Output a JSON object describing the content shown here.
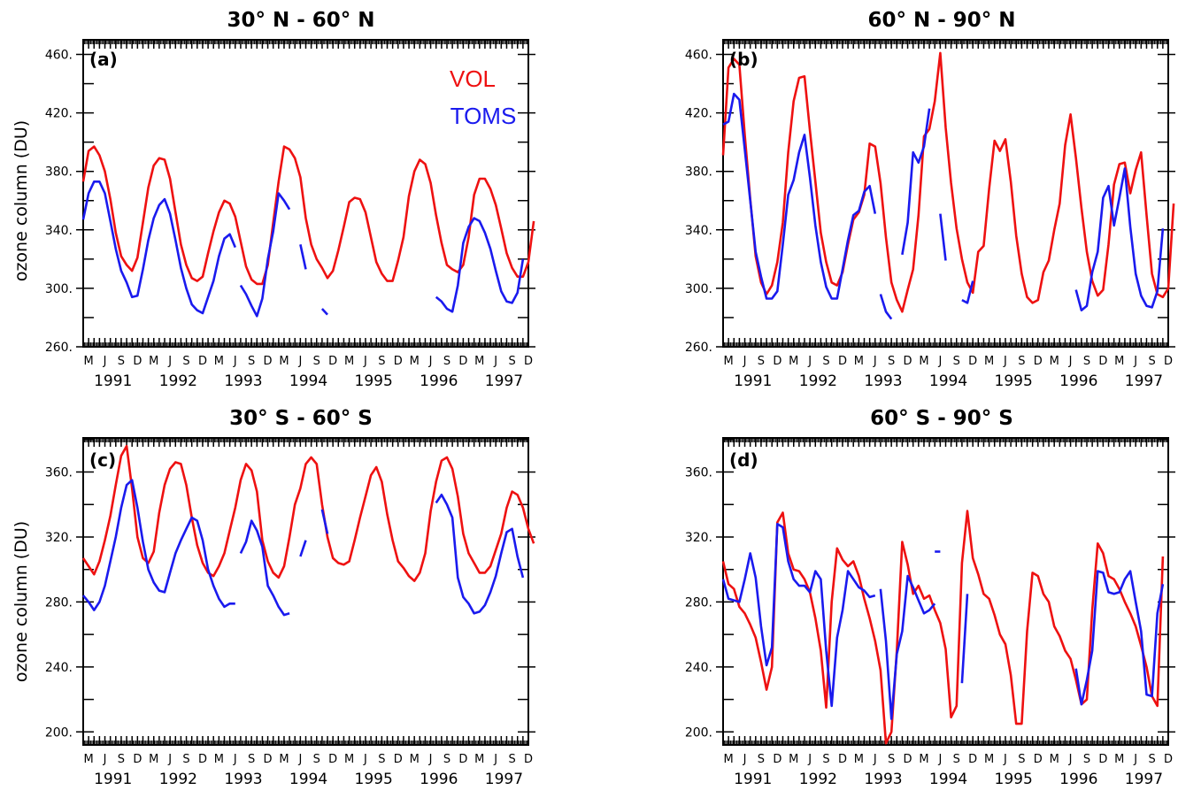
{
  "figure": {
    "month_letters": [
      "M",
      "J",
      "S",
      "D"
    ],
    "years": [
      "1991",
      "1992",
      "1993",
      "1994",
      "1995",
      "1996",
      "1997"
    ],
    "colors": {
      "VOL": "#ee1111",
      "TOMS": "#1a1aee"
    }
  },
  "chart_data": [
    {
      "type": "line",
      "panel_label": "(a)",
      "title": "30° N - 60° N",
      "ylabel": "ozone column (DU)",
      "ylim": [
        260,
        470
      ],
      "yticks": [
        260,
        300,
        340,
        380,
        420,
        460
      ],
      "ytick_labels": [
        "260.",
        "300.",
        "340.",
        "380.",
        "420.",
        "460."
      ],
      "xlim": [
        "1991-02",
        "1997-12"
      ],
      "legend_position": "top-right",
      "series": [
        {
          "name": "VOL",
          "segments": [
            {
              "start": "1991-02",
              "values": [
                373,
                394,
                397,
                391,
                380,
                361,
                338,
                322,
                316,
                312,
                321,
                345,
                369,
                384,
                389,
                388,
                375,
                352,
                330,
                316,
                307,
                305,
                308,
                324,
                339,
                352,
                360,
                358,
                349,
                332,
                315,
                306,
                303,
                303,
                316,
                345,
                373,
                397,
                395,
                389,
                376,
                348,
                330,
                320,
                314,
                307,
                312,
                326,
                342,
                359,
                362,
                361,
                352,
                335,
                318,
                310,
                305,
                305,
                319,
                335,
                363,
                380,
                388,
                385,
                372,
                350,
                331,
                316,
                313,
                311,
                316,
                335,
                364,
                375,
                375,
                368,
                357,
                341,
                324,
                314,
                308,
                308,
                318,
                346
              ]
            }
          ]
        },
        {
          "name": "TOMS",
          "segments": [
            {
              "start": "1991-02",
              "values": [
                347,
                365,
                373,
                373,
                365,
                346,
                327,
                312,
                304,
                294,
                295,
                313,
                333,
                348,
                357,
                361,
                351,
                333,
                314,
                300,
                289,
                285,
                283,
                294,
                305,
                322,
                334,
                337,
                328
              ]
            },
            {
              "start": "1993-07",
              "values": [
                302,
                296,
                288,
                281,
                293,
                320,
                339,
                365,
                360,
                354
              ]
            },
            {
              "start": "1994-06",
              "values": [
                330,
                313
              ]
            },
            {
              "start": "1994-10",
              "values": [
                286,
                282
              ]
            },
            {
              "start": "1996-07",
              "values": [
                294,
                291,
                286,
                284,
                302,
                331,
                342,
                348,
                346,
                338,
                327,
                312,
                298,
                291,
                290,
                297,
                320
              ]
            }
          ]
        }
      ]
    },
    {
      "type": "line",
      "panel_label": "(b)",
      "title": "60° N - 90° N",
      "ylim": [
        260,
        470
      ],
      "yticks": [
        260,
        300,
        340,
        380,
        420,
        460
      ],
      "ytick_labels": [
        "260.",
        "300.",
        "340.",
        "380.",
        "420.",
        "460."
      ],
      "xlim": [
        "1991-02",
        "1997-12"
      ],
      "series": [
        {
          "name": "VOL",
          "segments": [
            {
              "start": "1991-02",
              "values": [
                391,
                451,
                457,
                453,
                405,
                361,
                322,
                304,
                296,
                302,
                318,
                345,
                393,
                428,
                444,
                445,
                408,
                373,
                338,
                318,
                304,
                302,
                311,
                330,
                347,
                352,
                364,
                399,
                397,
                372,
                335,
                304,
                292,
                284,
                299,
                313,
                350,
                404,
                409,
                428,
                461,
                410,
                372,
                341,
                320,
                304,
                297,
                325,
                329,
                368,
                401,
                394,
                402,
                373,
                336,
                310,
                294,
                290,
                292,
                311,
                319,
                340,
                358,
                398,
                419,
                389,
                355,
                325,
                305,
                295,
                299,
                330,
                371,
                385,
                386,
                365,
                381,
                393,
                350,
                310,
                296,
                294,
                300,
                358
              ]
            }
          ]
        },
        {
          "name": "TOMS",
          "segments": [
            {
              "start": "1991-02",
              "values": [
                412,
                414,
                433,
                429,
                395,
                360,
                325,
                308,
                293,
                293,
                298,
                330,
                364,
                374,
                393,
                405,
                376,
                343,
                318,
                301,
                293,
                293,
                313,
                333,
                350,
                353,
                366,
                370,
                351
              ]
            },
            {
              "start": "1993-07",
              "values": [
                296,
                284,
                279
              ]
            },
            {
              "start": "1993-11",
              "values": [
                323,
                345,
                393,
                386,
                397,
                423
              ]
            },
            {
              "start": "1994-06",
              "values": [
                351,
                319
              ]
            },
            {
              "start": "1994-10",
              "values": [
                292,
                290,
                305
              ]
            },
            {
              "start": "1996-07",
              "values": [
                299,
                285,
                288,
                311,
                325,
                362,
                370,
                343,
                362,
                382,
                342,
                310,
                295,
                288,
                287,
                298,
                341
              ]
            }
          ]
        }
      ]
    },
    {
      "type": "line",
      "panel_label": "(c)",
      "title": "30° S - 60° S",
      "ylabel": "ozone column (DU)",
      "ylim": [
        192,
        381
      ],
      "yticks": [
        200,
        240,
        280,
        320,
        360
      ],
      "ytick_labels": [
        "200.",
        "240.",
        "280.",
        "320.",
        "360."
      ],
      "xlim": [
        "1991-02",
        "1997-12"
      ],
      "series": [
        {
          "name": "VOL",
          "segments": [
            {
              "start": "1991-02",
              "values": [
                307,
                302,
                297,
                305,
                318,
                333,
                352,
                370,
                376,
                350,
                320,
                307,
                304,
                311,
                335,
                352,
                362,
                366,
                365,
                352,
                332,
                315,
                304,
                298,
                296,
                302,
                310,
                324,
                338,
                355,
                365,
                361,
                348,
                318,
                305,
                298,
                295,
                302,
                320,
                340,
                350,
                365,
                369,
                365,
                340,
                320,
                307,
                304,
                303,
                305,
                318,
                332,
                345,
                358,
                363,
                354,
                334,
                318,
                305,
                301,
                296,
                293,
                298,
                310,
                336,
                354,
                367,
                369,
                362,
                345,
                322,
                310,
                304,
                298,
                298,
                302,
                312,
                322,
                338,
                348,
                346,
                338,
                325,
                316
              ]
            }
          ]
        },
        {
          "name": "TOMS",
          "segments": [
            {
              "start": "1991-02",
              "values": [
                284,
                280,
                275,
                280,
                290,
                305,
                320,
                338,
                352,
                355,
                338,
                317,
                300,
                292,
                287,
                286,
                298,
                310,
                318,
                325,
                332,
                330,
                318,
                300,
                290,
                282,
                277,
                279,
                279
              ]
            },
            {
              "start": "1993-07",
              "values": [
                310,
                317,
                330,
                324,
                314,
                290,
                284,
                277,
                272,
                273
              ]
            },
            {
              "start": "1994-06",
              "values": [
                308,
                318
              ]
            },
            {
              "start": "1994-10",
              "values": [
                337,
                322
              ]
            },
            {
              "start": "1996-07",
              "values": [
                341,
                346,
                340,
                332,
                295,
                283,
                279,
                273,
                274,
                278,
                286,
                296,
                310,
                323,
                325,
                308,
                295
              ]
            }
          ]
        }
      ]
    },
    {
      "type": "line",
      "panel_label": "(d)",
      "title": "60° S - 90° S",
      "ylim": [
        192,
        381
      ],
      "yticks": [
        200,
        240,
        280,
        320,
        360
      ],
      "ytick_labels": [
        "200.",
        "240.",
        "280.",
        "320.",
        "360."
      ],
      "xlim": [
        "1991-02",
        "1997-12"
      ],
      "series": [
        {
          "name": "VOL",
          "segments": [
            {
              "start": "1991-02",
              "values": [
                305,
                291,
                288,
                277,
                273,
                266,
                258,
                243,
                226,
                240,
                329,
                335,
                310,
                300,
                299,
                294,
                286,
                270,
                250,
                215,
                280,
                313,
                306,
                302,
                305,
                296,
                282,
                270,
                256,
                238,
                193,
                200,
                250,
                317,
                303,
                285,
                290,
                282,
                284,
                275,
                267,
                251,
                209,
                216,
                304,
                336,
                307,
                297,
                285,
                282,
                272,
                260,
                254,
                235,
                205,
                205,
                262,
                298,
                296,
                285,
                280,
                265,
                259,
                250,
                245,
                232,
                217,
                220,
                275,
                316,
                310,
                296,
                294,
                288,
                280,
                273,
                265,
                253,
                240,
                222,
                216,
                308
              ]
            }
          ]
        },
        {
          "name": "TOMS",
          "segments": [
            {
              "start": "1991-02",
              "values": [
                294,
                282,
                281,
                280,
                294,
                310,
                295,
                265,
                241,
                252,
                328,
                326,
                305,
                294,
                290,
                290,
                286,
                299,
                294,
                250,
                216,
                258,
                275,
                299,
                294,
                289,
                287,
                283,
                284
              ]
            },
            {
              "start": "1993-07",
              "values": [
                288,
                256,
                208,
                248,
                262,
                296,
                289,
                281,
                273,
                275,
                279
              ]
            },
            {
              "start": "1994-05",
              "values": [
                311,
                311
              ]
            },
            {
              "start": "1994-10",
              "values": [
                230,
                285
              ]
            },
            {
              "start": "1996-07",
              "values": [
                239,
                217,
                232,
                250,
                299,
                298,
                286,
                285,
                286,
                294,
                299,
                280,
                262,
                223,
                222,
                273,
                291
              ]
            }
          ]
        }
      ]
    }
  ]
}
